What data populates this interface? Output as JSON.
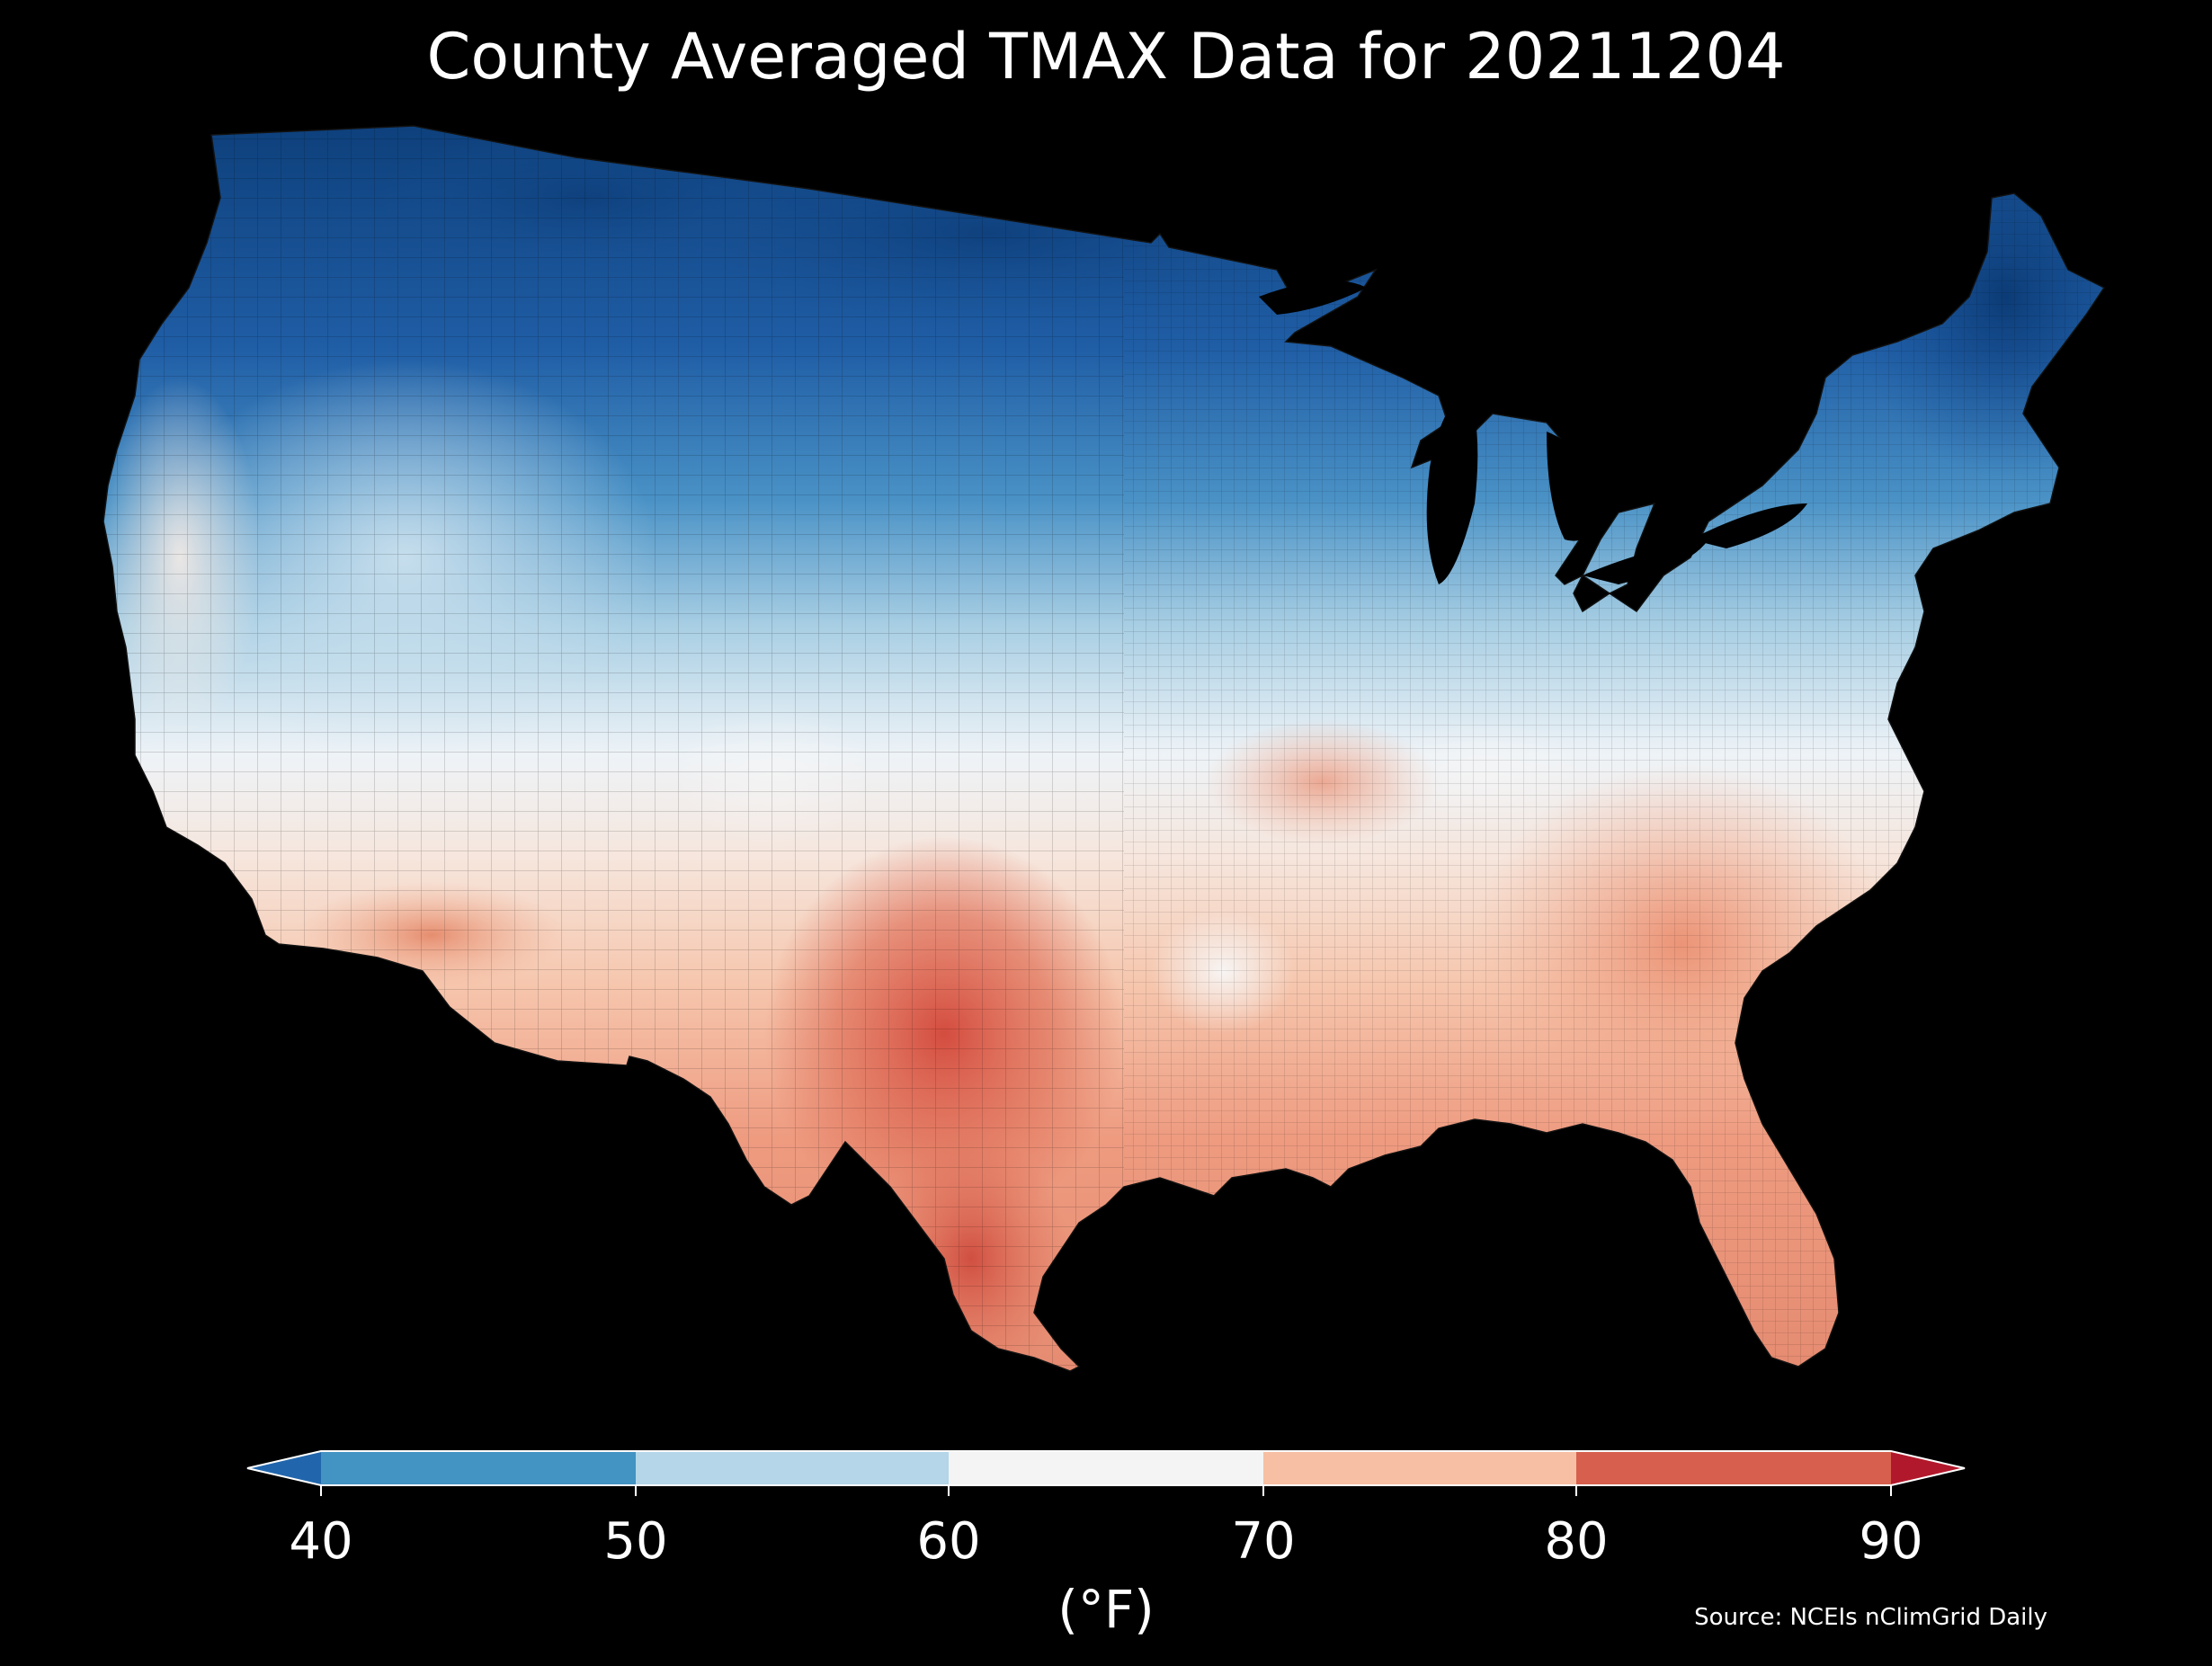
{
  "title": "County Averaged TMAX Data for 20211204",
  "source": "Source: NCEIs nClimGrid Daily",
  "colorbar": {
    "ticks": [
      "40",
      "50",
      "60",
      "70",
      "80",
      "90"
    ],
    "unit": "(°F)",
    "extend": "both",
    "bins": [
      {
        "range": "<40",
        "color": "#2166ac"
      },
      {
        "range": "40-50",
        "color": "#4393c3"
      },
      {
        "range": "50-60",
        "color": "#b4d6e8"
      },
      {
        "range": "60-70",
        "color": "#f4f4f4"
      },
      {
        "range": "70-80",
        "color": "#f7bfa3"
      },
      {
        "range": "80-90",
        "color": "#d6604d"
      },
      {
        "range": ">90",
        "color": "#b2182b"
      }
    ]
  },
  "chart_data": {
    "type": "heatmap",
    "variable": "TMAX",
    "unit": "°F",
    "date": "20211204",
    "colorbar_range": [
      40,
      90
    ]
  }
}
